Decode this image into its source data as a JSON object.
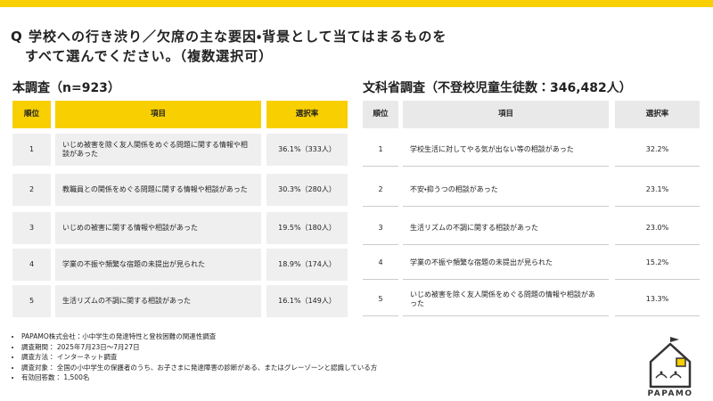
{
  "header": {
    "question_lines": [
      "Q 学校への行き渋り／欠席の主な要因・背景として当てはまるものを",
      "すべて選んでください。（複数選択可）"
    ]
  },
  "left_table": {
    "title": "本調査（n=923）",
    "columns": [
      "順位",
      "項目",
      "選択率"
    ],
    "rows": [
      [
        1,
        "いじめ被害を除く友人関係をめぐる問題に関する情報や相談があった",
        "36.1%（333人）"
      ],
      [
        2,
        "教職員との関係をめぐる問題に関する情報や相談があった",
        "30.3%（280人）"
      ],
      [
        3,
        "いじめの被害に関する情報や相談があった",
        "19.5%（180人）"
      ],
      [
        4,
        "学業の不振や頻繁な宿題の未提出が見られた",
        "18.9%（174人）"
      ],
      [
        5,
        "生活リズムの不調に関する相談があった",
        "16.1%（149人）"
      ]
    ]
  },
  "right_table": {
    "title": "文科省調査（不登校児童生徒数：346,482人）",
    "columns": [
      "順位",
      "項目",
      "選択率"
    ],
    "rows": [
      [
        1,
        "学校生活に対してやる気が出ない等の相談があった",
        "32.2%"
      ],
      [
        2,
        "不安・抑うつの相談があった",
        "23.1%"
      ],
      [
        3,
        "生活リズムの不調に関する相談があった",
        "23.0%"
      ],
      [
        4,
        "学業の不振や頻繁な宿題の未提出が見られた",
        "15.2%"
      ],
      [
        5,
        "いじめ被害を除く友人関係をめぐる問題の情報や相談があった",
        "13.3%"
      ]
    ]
  },
  "notes": [
    "PAPAMO株式会社：小中学生の発達特性と登校困難の関連性調査",
    "調査期間： 2025年7月23日～7月27日",
    "調査方法： インターネット調査",
    "調査対象： 全国の小中学生の保護者のうち、お子さまに発達障害の診断がある、またはグレーゾーンと認識している方",
    "有効回答数： 1,500名"
  ],
  "logo": {
    "text": "PAPAMO"
  }
}
